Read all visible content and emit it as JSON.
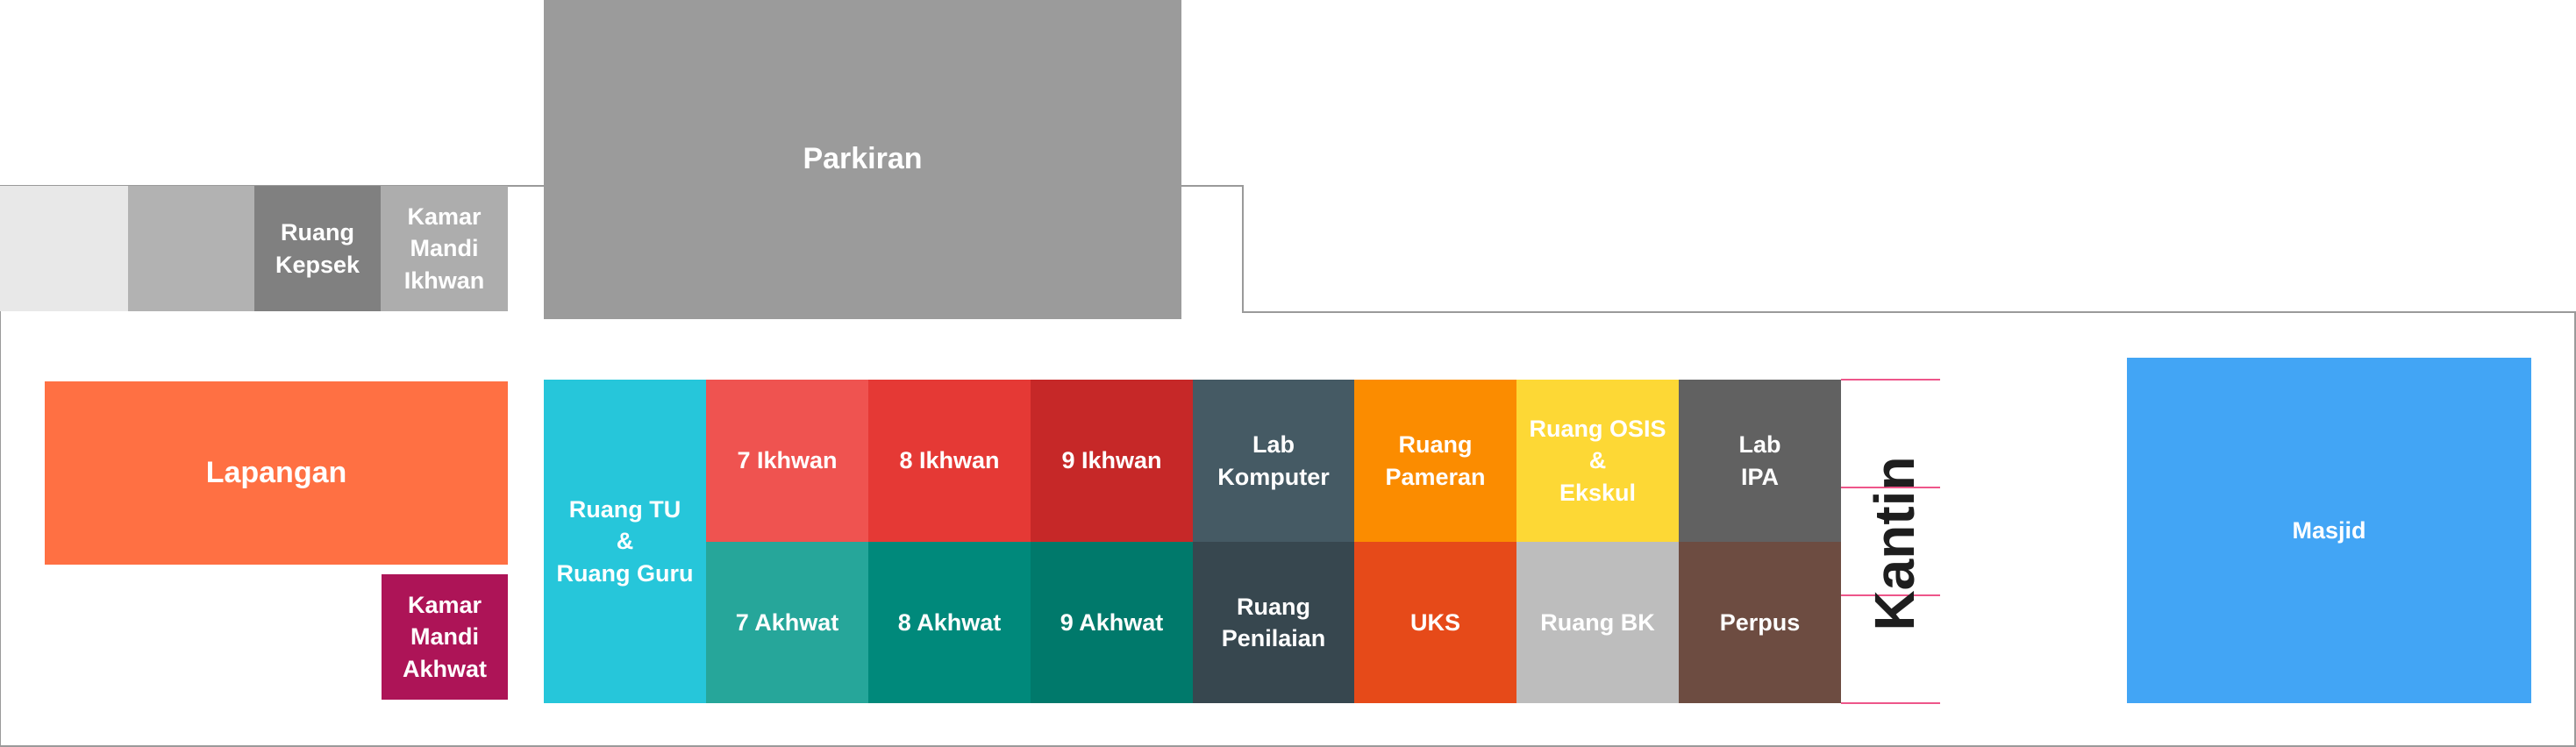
{
  "rooms": {
    "blank1": {
      "label": "",
      "color": "#e8e8e8"
    },
    "blank2": {
      "label": "",
      "color": "#b2b2b2"
    },
    "kepsek": {
      "label": "Ruang\nKepsek",
      "color": "#808080"
    },
    "km_ikhwan": {
      "label": "Kamar\nMandi\nIkhwan",
      "color": "#adadad"
    },
    "parkiran": {
      "label": "Parkiran",
      "color": "#9b9b9b"
    },
    "lapangan": {
      "label": "Lapangan",
      "color": "#ff7043"
    },
    "km_akhwat": {
      "label": "Kamar\nMandi\nAkhwat",
      "color": "#ad1457"
    },
    "ruang_tu": {
      "label": "Ruang TU\n&\nRuang Guru",
      "color": "#26c6da"
    },
    "ikhwan7": {
      "label": "7 Ikhwan",
      "color": "#ef5350"
    },
    "ikhwan8": {
      "label": "8 Ikhwan",
      "color": "#e53935"
    },
    "ikhwan9": {
      "label": "9 Ikhwan",
      "color": "#c62828"
    },
    "lab_komputer": {
      "label": "Lab\nKomputer",
      "color": "#455a64"
    },
    "ruang_pameran": {
      "label": "Ruang\nPameran",
      "color": "#fb8c00"
    },
    "ruang_osis": {
      "label": "Ruang OSIS\n&\nEkskul",
      "color": "#fdd835"
    },
    "lab_ipa": {
      "label": "Lab\nIPA",
      "color": "#616161"
    },
    "akhwat7": {
      "label": "7 Akhwat",
      "color": "#26a69a"
    },
    "akhwat8": {
      "label": "8 Akhwat",
      "color": "#00897b"
    },
    "akhwat9": {
      "label": "9 Akhwat",
      "color": "#00796b"
    },
    "ruang_penilaian": {
      "label": "Ruang\nPenilaian",
      "color": "#37474f"
    },
    "uks": {
      "label": "UKS",
      "color": "#e64a19"
    },
    "ruang_bk": {
      "label": "Ruang BK",
      "color": "#bdbdbd"
    },
    "perpus": {
      "label": "Perpus",
      "color": "#6d4c41"
    },
    "masjid": {
      "label": "Masjid",
      "color": "#42a5f5"
    },
    "kantin": {
      "label": "Kantin",
      "color": "#1e1e1e",
      "line_color": "#e91e63"
    }
  },
  "outline_color": "#9a9a9a"
}
